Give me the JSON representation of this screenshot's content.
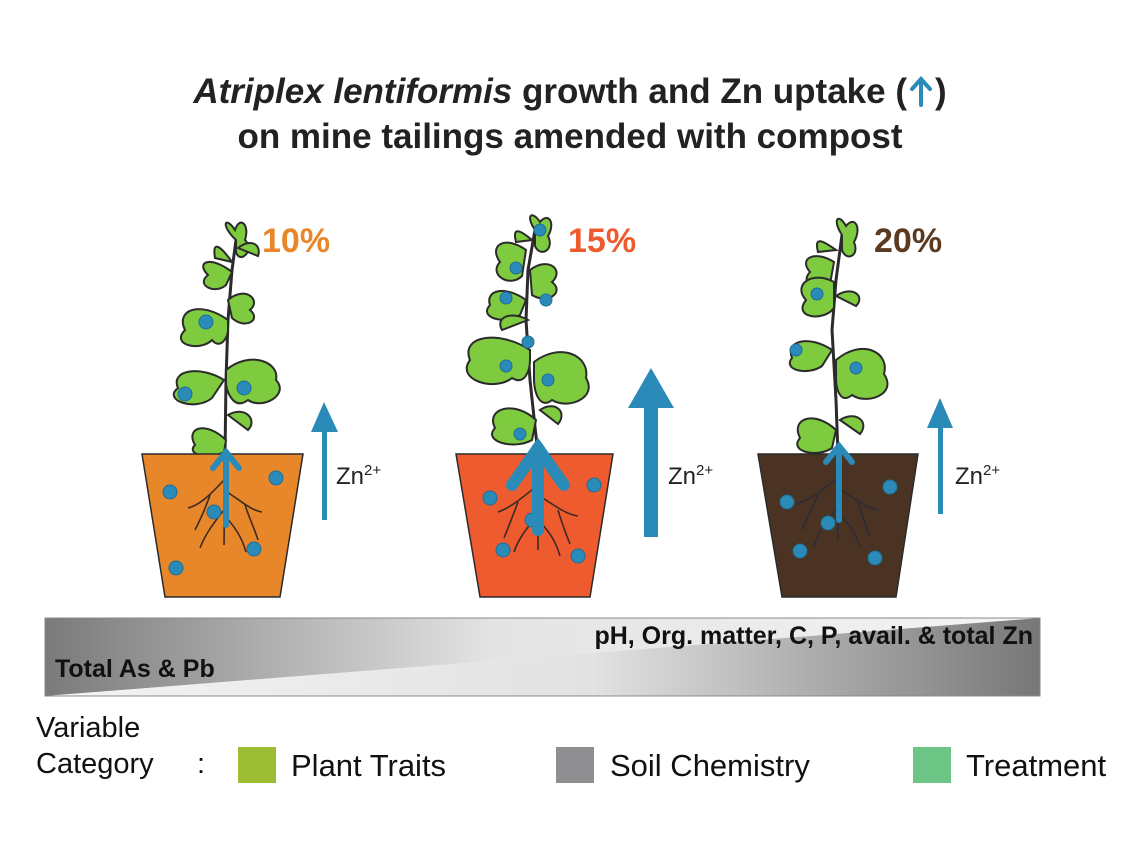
{
  "title": {
    "species": "Atriplex lentiformis",
    "line1_rest": " growth and Zn uptake (",
    "line1_close": ")",
    "line2": "on mine tailings amended with compost"
  },
  "treatments": [
    {
      "label": "10%",
      "color": "#e8862a",
      "pot_color": "#e8862a"
    },
    {
      "label": "15%",
      "color": "#ee5b2e",
      "pot_color": "#ee5b2e"
    },
    {
      "label": "20%",
      "color": "#5a3b22",
      "pot_color": "#4a3322"
    }
  ],
  "zn_label": {
    "base": "Zn",
    "charge": "2+"
  },
  "gradient": {
    "top_label": "pH, Org. matter, C, P, avail. & total Zn",
    "bottom_label": "Total As & Pb"
  },
  "legend": {
    "title_line1": "Variable",
    "title_line2": "Category",
    "colon": ":",
    "items": [
      {
        "label": "Plant Traits",
        "color": "#9cbd34"
      },
      {
        "label": "Soil Chemistry",
        "color": "#8f8f91"
      },
      {
        "label": "Treatment",
        "color": "#6cc485"
      }
    ]
  },
  "colors": {
    "plant": "#7fcb3f",
    "zinc": "#2a8ab8",
    "outline": "#2b2b2b"
  }
}
